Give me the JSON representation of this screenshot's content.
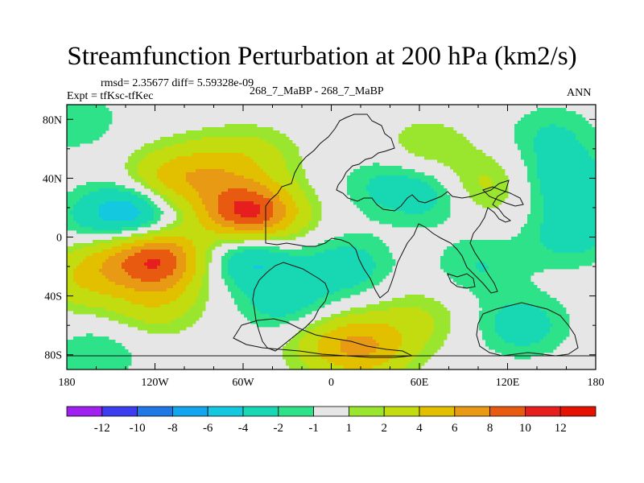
{
  "chart_data": {
    "type": "heatmap",
    "title": "Streamfunction Perturbation at 200 hPa (km2/s)",
    "stats_text": "rmsd= 2.35677  diff= 5.59328e-09",
    "left_label": "Expt = tfKsc-tfKec",
    "center_label": "268_7_MaBP - 268_7_MaBP",
    "right_label": "ANN",
    "x_ticks": [
      "180",
      "120W",
      "60W",
      "0",
      "60E",
      "120E",
      "180"
    ],
    "x_tick_values": [
      -180,
      -120,
      -60,
      0,
      60,
      120,
      180
    ],
    "y_ticks": [
      "80N",
      "40N",
      "0",
      "40S",
      "80S"
    ],
    "y_tick_values": [
      80,
      40,
      0,
      -40,
      -80
    ],
    "xlim": [
      -180,
      180
    ],
    "ylim": [
      -90,
      90
    ],
    "colorbar": {
      "labels": [
        "-12",
        "-10",
        "-8",
        "-6",
        "-4",
        "-2",
        "-1",
        "1",
        "2",
        "4",
        "6",
        "8",
        "10",
        "12"
      ],
      "colors": [
        "#a020f0",
        "#3c3cf0",
        "#1e78e6",
        "#12a6f0",
        "#14c8e0",
        "#18d8b4",
        "#2ee28a",
        "#e6e6e6",
        "#9ae62e",
        "#c2dc10",
        "#e2c000",
        "#e89a14",
        "#e85a10",
        "#e61e1e",
        "#e61200"
      ]
    },
    "anomalies": [
      {
        "lon": -80,
        "lat": 48,
        "value": 3
      },
      {
        "lon": -50,
        "lat": 55,
        "value": 2
      },
      {
        "lon": -112,
        "lat": 37,
        "value": 5
      },
      {
        "lon": -133,
        "lat": 17,
        "value": -6
      },
      {
        "lon": -162,
        "lat": 10,
        "value": -2
      },
      {
        "lon": -60,
        "lat": 17,
        "value": 9
      },
      {
        "lon": -40,
        "lat": 12,
        "value": 3
      },
      {
        "lon": -117,
        "lat": -15,
        "value": 9
      },
      {
        "lon": -150,
        "lat": -13,
        "value": 3
      },
      {
        "lon": -170,
        "lat": -30,
        "value": 3
      },
      {
        "lon": -120,
        "lat": -45,
        "value": 3
      },
      {
        "lon": -55,
        "lat": -12,
        "value": -5
      },
      {
        "lon": -30,
        "lat": -45,
        "value": -3
      },
      {
        "lon": 10,
        "lat": -20,
        "value": -3
      },
      {
        "lon": 25,
        "lat": -75,
        "value": 5
      },
      {
        "lon": -3,
        "lat": -72,
        "value": 3
      },
      {
        "lon": -160,
        "lat": -80,
        "value": -2
      },
      {
        "lon": 35,
        "lat": 35,
        "value": -2
      },
      {
        "lon": 70,
        "lat": 30,
        "value": -3
      },
      {
        "lon": 100,
        "lat": 35,
        "value": 3
      },
      {
        "lon": 150,
        "lat": 70,
        "value": -2
      },
      {
        "lon": 160,
        "lat": 40,
        "value": -3
      },
      {
        "lon": 100,
        "lat": -20,
        "value": -2
      },
      {
        "lon": 130,
        "lat": -60,
        "value": -3
      },
      {
        "lon": 65,
        "lat": 60,
        "value": 2
      },
      {
        "lon": 160,
        "lat": -2,
        "value": -2
      },
      {
        "lon": 60,
        "lat": -55,
        "value": 2
      },
      {
        "lon": 175,
        "lat": 15,
        "value": -2
      },
      {
        "lon": -175,
        "lat": 80,
        "value": -2
      }
    ]
  }
}
